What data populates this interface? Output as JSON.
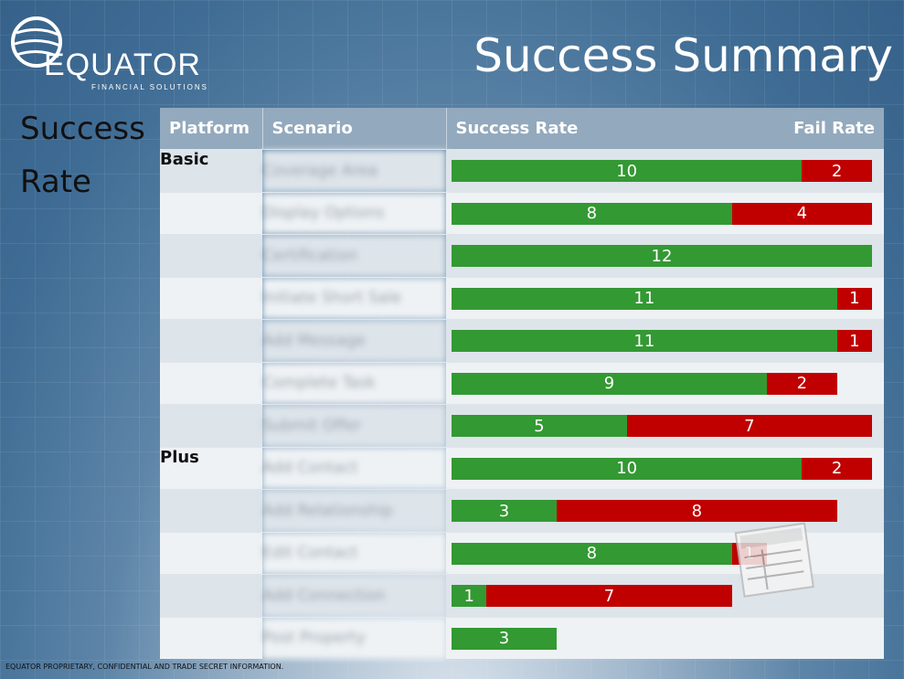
{
  "header": {
    "logo_text": "EQUATOR",
    "logo_subtitle": "FINANCIAL SOLUTIONS",
    "title": "Success Summary"
  },
  "side_label": "Success Rate",
  "table": {
    "headers": {
      "platform": "Platform",
      "scenario": "Scenario",
      "success": "Success Rate",
      "fail": "Fail Rate"
    },
    "rows": [
      {
        "platform": "Basic",
        "scenario": "Coverage Area",
        "success": 10,
        "fail": 2
      },
      {
        "platform": "",
        "scenario": "Display Options",
        "success": 8,
        "fail": 4
      },
      {
        "platform": "",
        "scenario": "Certification",
        "success": 12,
        "fail": 0
      },
      {
        "platform": "",
        "scenario": "Initiate Short Sale",
        "success": 11,
        "fail": 1
      },
      {
        "platform": "",
        "scenario": "Add Message",
        "success": 11,
        "fail": 1
      },
      {
        "platform": "",
        "scenario": "Complete Task",
        "success": 9,
        "fail": 2
      },
      {
        "platform": "",
        "scenario": "Submit Offer",
        "success": 5,
        "fail": 7
      },
      {
        "platform": "Plus",
        "scenario": "Add Contact",
        "success": 10,
        "fail": 2
      },
      {
        "platform": "",
        "scenario": "Add Relationship",
        "success": 3,
        "fail": 8
      },
      {
        "platform": "",
        "scenario": "Edit Contact",
        "success": 8,
        "fail": 1
      },
      {
        "platform": "",
        "scenario": "Add Connection",
        "success": 1,
        "fail": 7
      },
      {
        "platform": "",
        "scenario": "Post Property",
        "success": 3,
        "fail": 0
      }
    ]
  },
  "chart_data": {
    "type": "bar",
    "orientation": "horizontal",
    "stacked": true,
    "title": "Success Summary",
    "categories": [
      "Coverage Area",
      "Display Options",
      "Certification",
      "Initiate Short Sale",
      "Add Message",
      "Complete Task",
      "Submit Offer",
      "Add Contact",
      "Add Relationship",
      "Edit Contact",
      "Add Connection",
      "Post Property"
    ],
    "series": [
      {
        "name": "Success Rate",
        "values": [
          10,
          8,
          12,
          11,
          11,
          9,
          5,
          10,
          3,
          8,
          1,
          3
        ]
      },
      {
        "name": "Fail Rate",
        "values": [
          2,
          4,
          0,
          1,
          1,
          2,
          7,
          2,
          8,
          1,
          7,
          0
        ]
      }
    ],
    "xlim": [
      0,
      12
    ]
  },
  "colors": {
    "success": "#339933",
    "fail": "#c00000",
    "header": "#93a9bd"
  },
  "footer": "EQUATOR PROPRIETARY, CONFIDENTIAL AND TRADE SECRET INFORMATION."
}
